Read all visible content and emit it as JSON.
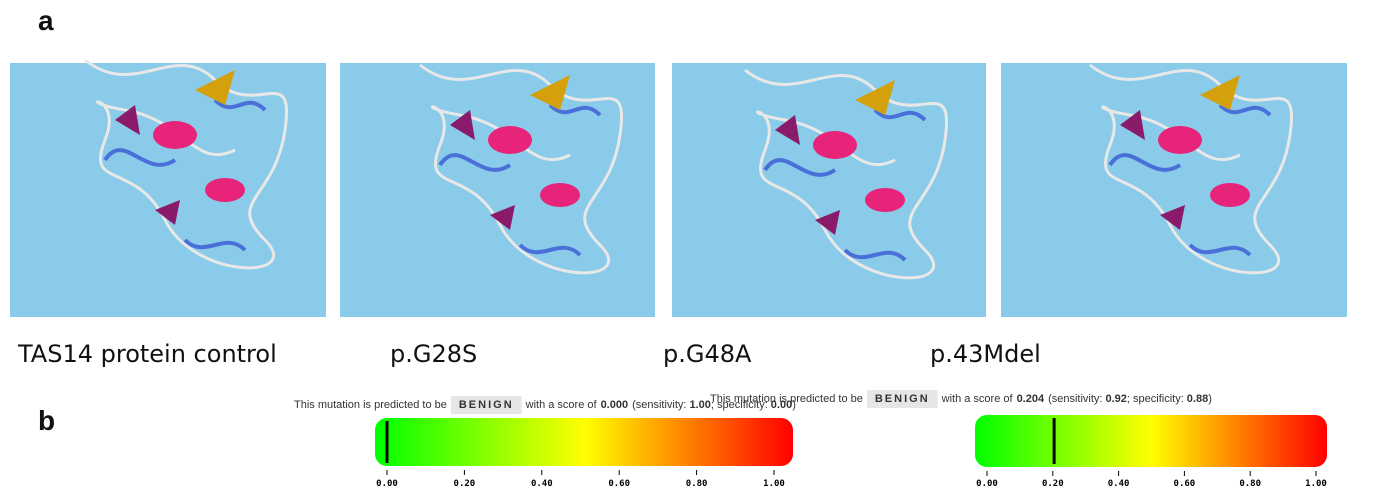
{
  "panel_a": {
    "label": "a",
    "structures": [
      {
        "caption": "TAS14 protein control"
      },
      {
        "caption": "p.G28S"
      },
      {
        "caption": "p.G48A"
      },
      {
        "caption": "p.43Mdel"
      }
    ]
  },
  "panel_b": {
    "label": "b",
    "scale_ticks": [
      {
        "value": 0,
        "label": "0.00"
      },
      {
        "value": 0.2,
        "label": "0.20"
      },
      {
        "value": 0.4,
        "label": "0.40"
      },
      {
        "value": 0.6,
        "label": "0.60"
      },
      {
        "value": 0.8,
        "label": "0.80"
      },
      {
        "value": 1,
        "label": "1.00"
      }
    ],
    "predictions": [
      {
        "text_before": "This mutation is predicted to be",
        "prediction": "BENIGN",
        "text_score": "with a score of",
        "score": {
          "value": 0,
          "label": "0.000"
        },
        "text_sensitivity": "(sensitivity:",
        "sensitivity": "1.00",
        "text_specificity": "; specificity:",
        "specificity": "0.00",
        "text_end": ")"
      },
      {
        "text_before": "This mutation is predicted to be",
        "prediction": "BENIGN",
        "text_score": "with a score of",
        "score": {
          "value": 0.204,
          "label": "0.204"
        },
        "text_sensitivity": "(sensitivity:",
        "sensitivity": "0.92",
        "text_specificity": "; specificity:",
        "specificity": "0.88",
        "text_end": ")"
      }
    ]
  }
}
